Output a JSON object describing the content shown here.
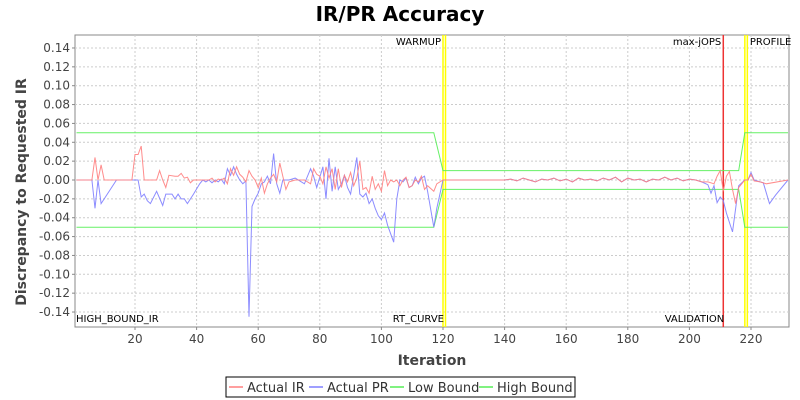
{
  "chart_data": {
    "type": "line",
    "title": "IR/PR Accuracy",
    "xlabel": "Iteration",
    "ylabel": "Discrepancy to Requested IR",
    "xlim": [
      0,
      232
    ],
    "ylim": [
      -0.155,
      0.155
    ],
    "x_ticks": [
      20,
      40,
      60,
      80,
      100,
      120,
      140,
      160,
      180,
      200,
      220
    ],
    "y_ticks": [
      0.14,
      0.12,
      0.1,
      0.08,
      0.06,
      0.04,
      0.02,
      0.0,
      -0.02,
      -0.04,
      -0.06,
      -0.08,
      -0.1,
      -0.12,
      -0.14
    ],
    "grid": true,
    "legend_position": "bottom",
    "series": [
      {
        "name": "Actual IR",
        "color": "#ff7f7f",
        "points": [
          [
            1,
            0
          ],
          [
            6,
            0
          ],
          [
            7,
            0.024
          ],
          [
            8,
            0
          ],
          [
            9,
            0.016
          ],
          [
            10,
            0
          ],
          [
            19,
            0
          ],
          [
            20,
            0.027
          ],
          [
            21,
            0.027
          ],
          [
            22,
            0.036
          ],
          [
            23,
            0
          ],
          [
            27,
            0
          ],
          [
            28,
            0.01
          ],
          [
            29,
            0
          ],
          [
            30,
            -0.008
          ],
          [
            31,
            0.005
          ],
          [
            33,
            0.004
          ],
          [
            34,
            0.004
          ],
          [
            35,
            0.007
          ],
          [
            36,
            0.002
          ],
          [
            37,
            0.003
          ],
          [
            38,
            -0.003
          ],
          [
            39,
            0
          ],
          [
            44,
            0
          ],
          [
            45,
            0.002
          ],
          [
            46,
            -0.002
          ],
          [
            47,
            0.001
          ],
          [
            48,
            0
          ],
          [
            49,
            0.002
          ],
          [
            50,
            -0.004
          ],
          [
            51,
            0.012
          ],
          [
            52,
            0.005
          ],
          [
            53,
            0.014
          ],
          [
            54,
            0.006
          ],
          [
            55,
            0.003
          ],
          [
            56,
            -0.002
          ],
          [
            57,
            0.01
          ],
          [
            58,
            0.004
          ],
          [
            59,
            0
          ],
          [
            60,
            -0.008
          ],
          [
            61,
            0.002
          ],
          [
            62,
            -0.014
          ],
          [
            63,
            -0.004
          ],
          [
            64,
            0.002
          ],
          [
            65,
            0.006
          ],
          [
            66,
            -0.002
          ],
          [
            67,
            0.018
          ],
          [
            68,
            0.004
          ],
          [
            69,
            -0.01
          ],
          [
            70,
            -0.002
          ],
          [
            72,
            0
          ],
          [
            75,
            0
          ],
          [
            77,
            -0.004
          ],
          [
            78,
            0.012
          ],
          [
            79,
            0.006
          ],
          [
            80,
            0.004
          ],
          [
            81,
            -0.004
          ],
          [
            82,
            0.014
          ],
          [
            83,
            0.002
          ],
          [
            84,
            0.012
          ],
          [
            85,
            -0.01
          ],
          [
            86,
            0.012
          ],
          [
            87,
            -0.008
          ],
          [
            88,
            0.005
          ],
          [
            89,
            -0.002
          ],
          [
            90,
            0.008
          ],
          [
            91,
            -0.006
          ],
          [
            92,
            0.002
          ],
          [
            93,
            0.02
          ],
          [
            94,
            -0.01
          ],
          [
            95,
            -0.008
          ],
          [
            96,
            -0.014
          ],
          [
            97,
            0.004
          ],
          [
            98,
            -0.01
          ],
          [
            99,
            -0.004
          ],
          [
            100,
            -0.012
          ],
          [
            101,
            0.01
          ],
          [
            102,
            -0.006
          ],
          [
            103,
            0
          ],
          [
            104,
            -0.002
          ],
          [
            105,
            0
          ],
          [
            106,
            -0.006
          ],
          [
            107,
            0
          ],
          [
            108,
            0.003
          ],
          [
            109,
            -0.008
          ],
          [
            110,
            -0.006
          ],
          [
            111,
            0
          ],
          [
            112,
            -0.002
          ],
          [
            113,
            0.004
          ],
          [
            114,
            -0.01
          ],
          [
            115,
            -0.006
          ],
          [
            117,
            -0.012
          ],
          [
            118,
            -0.004
          ],
          [
            120,
            0
          ],
          [
            140,
            0
          ],
          [
            142,
            0.001
          ],
          [
            144,
            -0.001
          ],
          [
            146,
            0.002
          ],
          [
            148,
            0
          ],
          [
            150,
            -0.002
          ],
          [
            152,
            0.001
          ],
          [
            154,
            0
          ],
          [
            156,
            0.002
          ],
          [
            158,
            -0.001
          ],
          [
            160,
            0.001
          ],
          [
            162,
            -0.002
          ],
          [
            164,
            0.002
          ],
          [
            166,
            0
          ],
          [
            168,
            0.001
          ],
          [
            170,
            -0.001
          ],
          [
            172,
            0.002
          ],
          [
            174,
            0
          ],
          [
            176,
            0.003
          ],
          [
            178,
            -0.002
          ],
          [
            180,
            0.002
          ],
          [
            182,
            0
          ],
          [
            184,
            0.001
          ],
          [
            186,
            -0.002
          ],
          [
            188,
            0.001
          ],
          [
            190,
            0
          ],
          [
            192,
            0.003
          ],
          [
            194,
            0
          ],
          [
            196,
            0.002
          ],
          [
            198,
            -0.001
          ],
          [
            200,
            0.001
          ],
          [
            202,
            0
          ],
          [
            204,
            -0.002
          ],
          [
            206,
            -0.002
          ],
          [
            208,
            -0.004
          ],
          [
            209,
            0.004
          ],
          [
            210,
            0.01
          ],
          [
            211,
            -0.012
          ],
          [
            212,
            0.004
          ],
          [
            213,
            0.009
          ],
          [
            214,
            -0.01
          ],
          [
            215,
            -0.025
          ],
          [
            216,
            -0.008
          ],
          [
            218,
            0
          ],
          [
            219,
            0
          ],
          [
            220,
            0.006
          ],
          [
            221,
            -0.001
          ],
          [
            223,
            -0.002
          ],
          [
            225,
            -0.004
          ],
          [
            232,
            0
          ]
        ]
      },
      {
        "name": "Actual PR",
        "color": "#7f7fff",
        "points": [
          [
            1,
            0
          ],
          [
            6,
            0
          ],
          [
            7,
            -0.03
          ],
          [
            8,
            0
          ],
          [
            9,
            -0.025
          ],
          [
            14,
            0
          ],
          [
            21,
            0
          ],
          [
            22,
            -0.018
          ],
          [
            23,
            -0.015
          ],
          [
            24,
            -0.022
          ],
          [
            25,
            -0.025
          ],
          [
            27,
            -0.012
          ],
          [
            29,
            -0.027
          ],
          [
            30,
            -0.015
          ],
          [
            32,
            -0.015
          ],
          [
            33,
            -0.02
          ],
          [
            34,
            -0.015
          ],
          [
            35,
            -0.02
          ],
          [
            36,
            -0.02
          ],
          [
            37,
            -0.025
          ],
          [
            39,
            -0.015
          ],
          [
            41,
            -0.004
          ],
          [
            42,
            0
          ],
          [
            43,
            -0.002
          ],
          [
            44,
            0
          ],
          [
            45,
            -0.003
          ],
          [
            46,
            0
          ],
          [
            47,
            -0.002
          ],
          [
            48,
            0.001
          ],
          [
            49,
            -0.004
          ],
          [
            50,
            0.012
          ],
          [
            51,
            0.005
          ],
          [
            52,
            0.014
          ],
          [
            53,
            0.006
          ],
          [
            54,
            0
          ],
          [
            55,
            -0.004
          ],
          [
            56,
            -0.001
          ],
          [
            57,
            -0.145
          ],
          [
            58,
            -0.028
          ],
          [
            59,
            -0.02
          ],
          [
            60,
            -0.014
          ],
          [
            61,
            -0.004
          ],
          [
            62,
            -0.002
          ],
          [
            63,
            0.004
          ],
          [
            64,
            -0.004
          ],
          [
            65,
            0.028
          ],
          [
            66,
            -0.004
          ],
          [
            67,
            -0.014
          ],
          [
            68,
            0
          ],
          [
            70,
            0
          ],
          [
            72,
            0.002
          ],
          [
            75,
            -0.004
          ],
          [
            77,
            0.012
          ],
          [
            78,
            0.004
          ],
          [
            79,
            -0.008
          ],
          [
            81,
            0.014
          ],
          [
            82,
            -0.02
          ],
          [
            83,
            0.023
          ],
          [
            84,
            -0.012
          ],
          [
            85,
            0.014
          ],
          [
            86,
            -0.01
          ],
          [
            87,
            -0.004
          ],
          [
            88,
            0.005
          ],
          [
            89,
            -0.008
          ],
          [
            90,
            -0.015
          ],
          [
            92,
            0.024
          ],
          [
            93,
            -0.015
          ],
          [
            94,
            -0.018
          ],
          [
            95,
            -0.014
          ],
          [
            96,
            -0.025
          ],
          [
            97,
            -0.02
          ],
          [
            98,
            -0.03
          ],
          [
            99,
            -0.038
          ],
          [
            100,
            -0.042
          ],
          [
            101,
            -0.035
          ],
          [
            102,
            -0.048
          ],
          [
            104,
            -0.066
          ],
          [
            105,
            -0.02
          ],
          [
            106,
            0
          ],
          [
            107,
            -0.002
          ],
          [
            108,
            0.002
          ],
          [
            109,
            -0.008
          ],
          [
            110,
            -0.006
          ],
          [
            111,
            0.003
          ],
          [
            112,
            -0.004
          ],
          [
            113,
            0.002
          ],
          [
            114,
            0.004
          ],
          [
            115,
            -0.012
          ],
          [
            117,
            -0.05
          ],
          [
            118,
            -0.03
          ],
          [
            120,
            0
          ],
          [
            140,
            0
          ],
          [
            142,
            0.001
          ],
          [
            144,
            -0.001
          ],
          [
            146,
            0.002
          ],
          [
            148,
            0
          ],
          [
            150,
            -0.002
          ],
          [
            152,
            0.001
          ],
          [
            154,
            0
          ],
          [
            156,
            0.002
          ],
          [
            158,
            -0.001
          ],
          [
            160,
            0.001
          ],
          [
            162,
            -0.002
          ],
          [
            164,
            0.002
          ],
          [
            166,
            0
          ],
          [
            168,
            0.001
          ],
          [
            170,
            -0.001
          ],
          [
            172,
            0.002
          ],
          [
            174,
            0
          ],
          [
            176,
            0.003
          ],
          [
            178,
            -0.002
          ],
          [
            180,
            0.002
          ],
          [
            182,
            0
          ],
          [
            184,
            0.001
          ],
          [
            186,
            -0.002
          ],
          [
            188,
            0.001
          ],
          [
            190,
            0
          ],
          [
            192,
            0.003
          ],
          [
            194,
            0
          ],
          [
            196,
            0.002
          ],
          [
            198,
            -0.001
          ],
          [
            200,
            0.001
          ],
          [
            202,
            0
          ],
          [
            204,
            -0.002
          ],
          [
            206,
            -0.005
          ],
          [
            207,
            -0.014
          ],
          [
            208,
            -0.006
          ],
          [
            209,
            -0.024
          ],
          [
            210,
            -0.018
          ],
          [
            211,
            -0.022
          ],
          [
            212,
            -0.035
          ],
          [
            213,
            -0.045
          ],
          [
            214,
            -0.055
          ],
          [
            216,
            -0.006
          ],
          [
            218,
            0
          ],
          [
            219,
            0
          ],
          [
            220,
            0.008
          ],
          [
            221,
            0
          ],
          [
            223,
            -0.002
          ],
          [
            224,
            -0.003
          ],
          [
            226,
            -0.025
          ],
          [
            228,
            -0.016
          ],
          [
            232,
            0
          ]
        ]
      },
      {
        "name": "Low Bound",
        "color": "#55ee55",
        "points": [
          [
            1,
            -0.05
          ],
          [
            117,
            -0.05
          ],
          [
            120,
            -0.01
          ],
          [
            216,
            -0.01
          ],
          [
            218,
            -0.05
          ],
          [
            232,
            -0.05
          ]
        ]
      },
      {
        "name": "High Bound",
        "color": "#55ee55",
        "points": [
          [
            1,
            0.05
          ],
          [
            117,
            0.05
          ],
          [
            120,
            0.01
          ],
          [
            216,
            0.01
          ],
          [
            218,
            0.05
          ],
          [
            232,
            0.05
          ]
        ]
      }
    ],
    "markers": [
      {
        "x": 120,
        "color": "#ffff00",
        "top_label": "WARMUP",
        "bottom_label": "RT_CURVE"
      },
      {
        "x": 211,
        "color": "#ee3333",
        "top_label": "max-jOPS",
        "bottom_label": "VALIDATION"
      },
      {
        "x": 218,
        "color": "#ffff00",
        "top_label": "PROFILE",
        "bottom_label": ""
      }
    ],
    "corner_label": "HIGH_BOUND_IR"
  }
}
